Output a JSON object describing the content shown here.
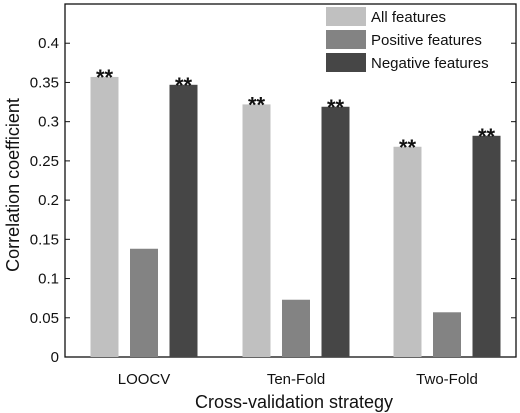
{
  "chart_data": {
    "type": "bar",
    "title": "",
    "xlabel": "Cross-validation strategy",
    "ylabel": "Correlation coefficient",
    "categories": [
      "LOOCV",
      "Ten-Fold",
      "Two-Fold"
    ],
    "ylim": [
      0,
      0.45
    ],
    "yticks": [
      "0",
      "0.05",
      "0.1",
      "0.15",
      "0.2",
      "0.25",
      "0.3",
      "0.35",
      "0.4"
    ],
    "ytick_values": [
      0,
      0.05,
      0.1,
      0.15,
      0.2,
      0.25,
      0.3,
      0.35,
      0.4
    ],
    "grid": false,
    "legend_position": "top-right",
    "series": [
      {
        "name": "All features",
        "color": "#c0c0c0",
        "values": [
          0.357,
          0.322,
          0.268
        ],
        "labels": [
          "**",
          "**",
          "**"
        ]
      },
      {
        "name": "Positive features",
        "color": "#838383",
        "values": [
          0.138,
          0.073,
          0.057
        ],
        "labels": [
          "",
          "",
          ""
        ]
      },
      {
        "name": "Negative features",
        "color": "#464646",
        "values": [
          0.347,
          0.319,
          0.282
        ],
        "labels": [
          "**",
          "**",
          "**"
        ]
      }
    ]
  }
}
